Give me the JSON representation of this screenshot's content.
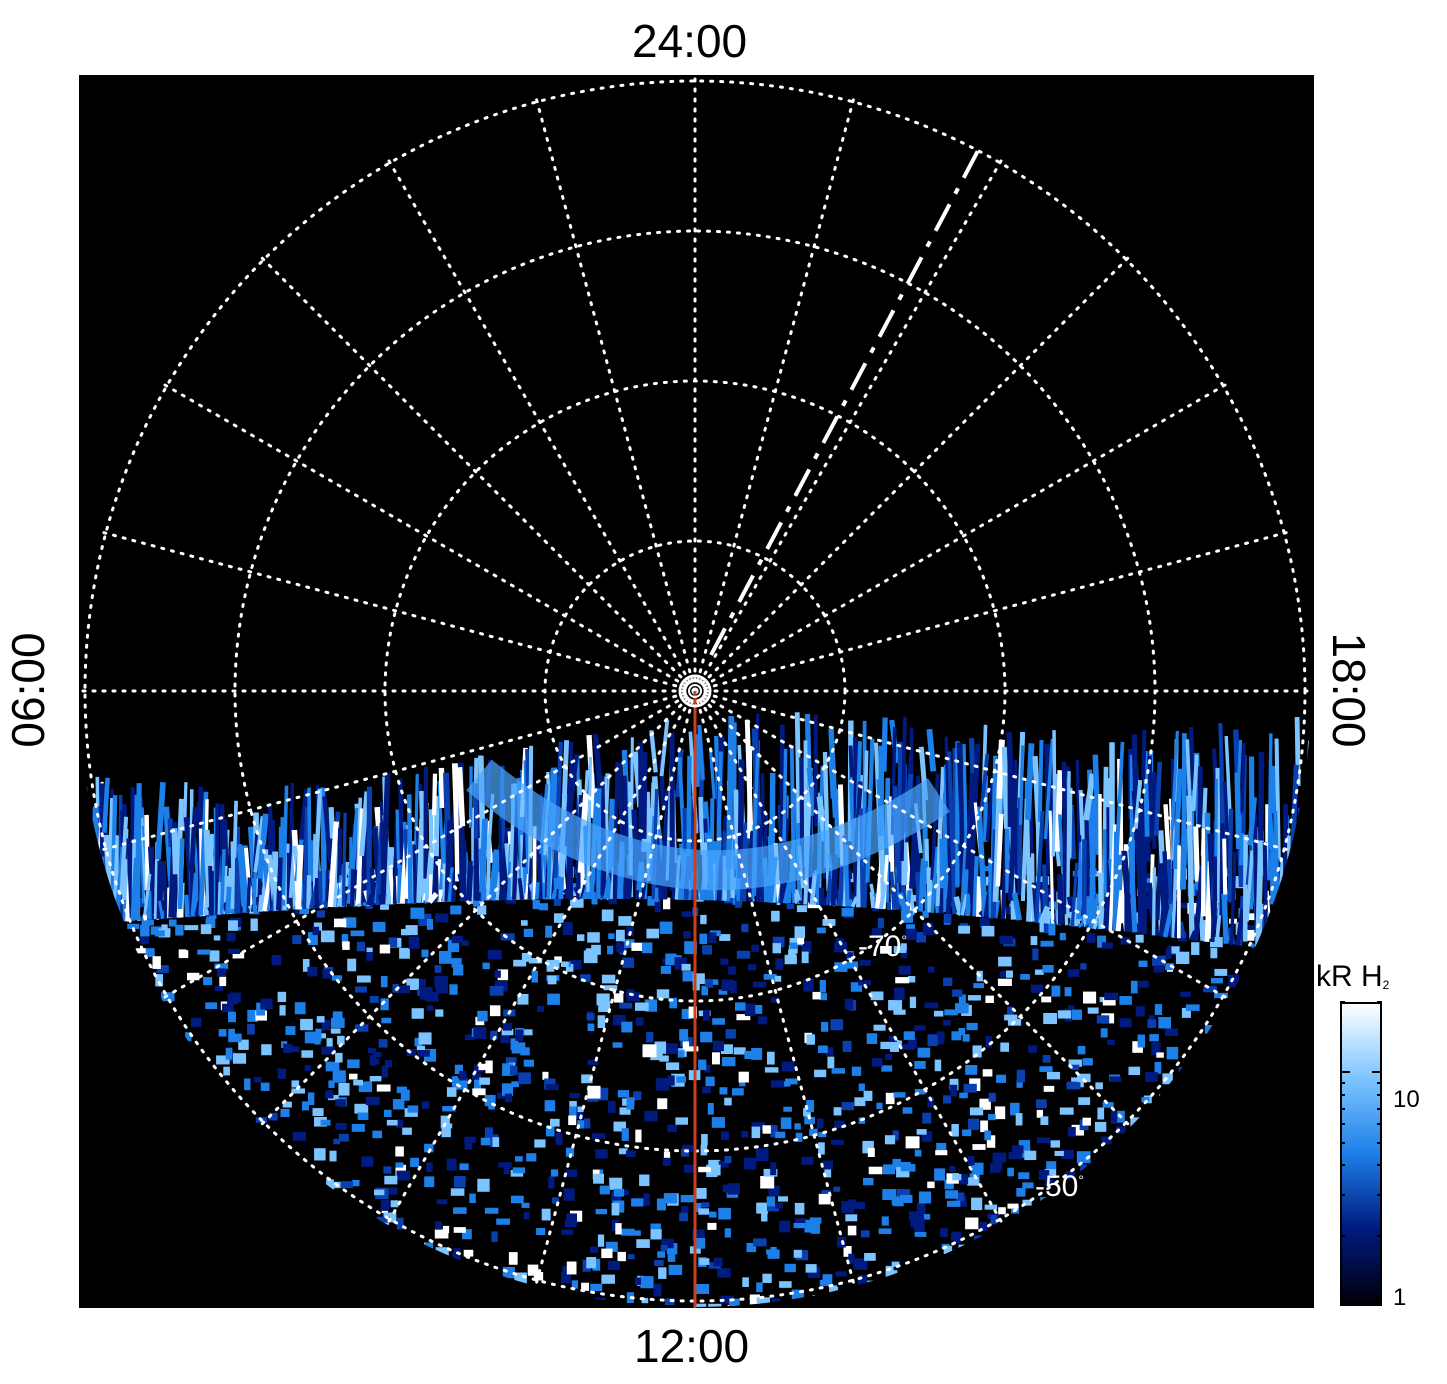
{
  "local_time_labels": {
    "top": "24:00",
    "bottom": "12:00",
    "left": "06:00",
    "right": "18:00"
  },
  "latitude_labels": {
    "inner": "-70",
    "outer": "-50",
    "degree_symbol": "°"
  },
  "colorbar": {
    "title_main": "kR H",
    "title_subscript": "2",
    "scale": "log",
    "range": [
      1,
      20
    ],
    "tick_labels": [
      "10",
      "1"
    ],
    "colors": [
      "#000008",
      "#001a80",
      "#1d7fe8",
      "#7cc4ff",
      "#ffffff"
    ]
  },
  "colors": {
    "background": "#000000",
    "grid": "#ffffff",
    "noon_meridian_line": "#c8401c"
  }
}
